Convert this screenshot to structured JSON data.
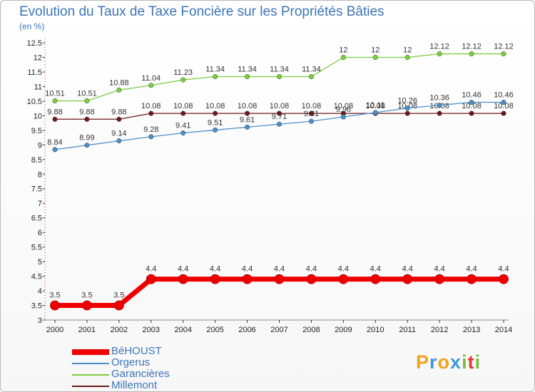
{
  "header": {
    "title": "Evolution du Taux de Taxe Foncière sur les Propriétés Bâties",
    "unit": "(en %)"
  },
  "logo": {
    "letters": [
      "P",
      "r",
      "o",
      "x",
      "i",
      "t",
      "i"
    ],
    "colors": [
      "#f4a21d",
      "#3d9ad8",
      "#f4a21d",
      "#3d9ad8",
      "#78be3b",
      "#e03a3a",
      "#78be3b"
    ]
  },
  "chart_data": {
    "type": "line",
    "title": "Evolution du Taux de Taxe Foncière sur les Propriétés Bâties",
    "ylabel": "(en %)",
    "xlabel": "",
    "ylim": [
      3,
      12.5
    ],
    "y_ticks": [
      "3",
      "3.5",
      "4",
      "4.5",
      "5",
      "5.5",
      "6",
      "6.5",
      "7",
      "7.5",
      "8",
      "8.5",
      "9",
      "9.5",
      "10",
      "10.5",
      "11",
      "11.5",
      "12",
      "12.5"
    ],
    "categories": [
      "2000",
      "2001",
      "2002",
      "2003",
      "2004",
      "2005",
      "2006",
      "2007",
      "2008",
      "2009",
      "2010",
      "2011",
      "2012",
      "2013",
      "2014"
    ],
    "legend_position": "bottom-left",
    "series": [
      {
        "name": "Millemont",
        "color": "#6b1a1a",
        "values": [
          9.88,
          9.88,
          9.88,
          10.08,
          10.08,
          10.08,
          10.08,
          10.08,
          10.08,
          10.08,
          10.08,
          10.08,
          10.08,
          10.08,
          10.08
        ],
        "labels": [
          "9.88",
          "9.88",
          "9.88",
          "10.08",
          "10.08",
          "10.08",
          "10.08",
          "10.08",
          "10.08",
          "10.08",
          "10.08",
          "10.08",
          "10.08",
          "10.08",
          "10.08"
        ]
      },
      {
        "name": "Orgerus",
        "color": "#4a90c8",
        "values": [
          8.84,
          8.99,
          9.14,
          9.28,
          9.41,
          9.51,
          9.61,
          9.71,
          9.81,
          9.96,
          10.11,
          10.26,
          10.36,
          10.46,
          10.46
        ],
        "labels": [
          "8.84",
          "8.99",
          "9.14",
          "9.28",
          "9.41",
          "9.51",
          "9.61",
          "9.71",
          "9.81",
          "9.96",
          "10.11",
          "10.26",
          "10.36",
          "10.46",
          "10.46"
        ]
      },
      {
        "name": "Garancières",
        "color": "#7ccd40",
        "values": [
          10.51,
          10.51,
          10.88,
          11.04,
          11.23,
          11.34,
          11.34,
          11.34,
          11.34,
          12,
          12,
          12,
          12.12,
          12.12,
          12.12
        ],
        "labels": [
          "10.51",
          "10.51",
          "10.88",
          "11.04",
          "11.23",
          "11.34",
          "11.34",
          "11.34",
          "11.34",
          "12",
          "12",
          "12",
          "12.12",
          "12.12",
          "12.12"
        ]
      },
      {
        "name": "BéHOUST",
        "color": "#ee0000",
        "values": [
          3.5,
          3.5,
          3.5,
          4.4,
          4.4,
          4.4,
          4.4,
          4.4,
          4.4,
          4.4,
          4.4,
          4.4,
          4.4,
          4.4,
          4.4
        ],
        "labels": [
          "3.5",
          "3.5",
          "3.5",
          "4.4",
          "4.4",
          "4.4",
          "4.4",
          "4.4",
          "4.4",
          "4.4",
          "4.4",
          "4.4",
          "4.4",
          "4.4",
          "4.4"
        ]
      }
    ],
    "legend": [
      {
        "name": "BéHOUST",
        "color": "#ee0000"
      },
      {
        "name": "Orgerus",
        "color": "#4a90c8"
      },
      {
        "name": "Garancières",
        "color": "#7ccd40"
      },
      {
        "name": "Millemont",
        "color": "#6b1a1a"
      }
    ]
  }
}
